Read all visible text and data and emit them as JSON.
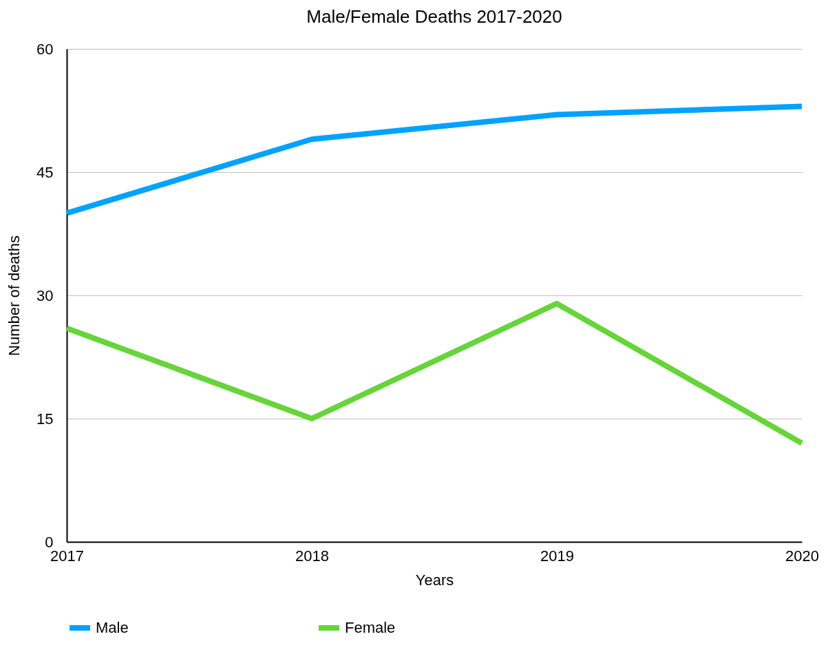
{
  "chart_data": {
    "type": "line",
    "title": "Male/Female Deaths 2017-2020",
    "xlabel": "Years",
    "ylabel": "Number of deaths",
    "categories": [
      "2017",
      "2018",
      "2019",
      "2020"
    ],
    "series": [
      {
        "name": "Male",
        "color": "#00a2ff",
        "values": [
          40,
          49,
          52,
          53
        ]
      },
      {
        "name": "Female",
        "color": "#66d43a",
        "values": [
          26,
          15,
          29,
          12
        ]
      }
    ],
    "ylim": [
      0,
      60
    ],
    "yticks": [
      0,
      15,
      30,
      45,
      60
    ],
    "grid": "y",
    "legend": "bottom"
  }
}
